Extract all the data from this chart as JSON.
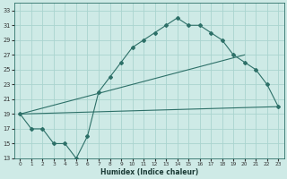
{
  "xlabel": "Humidex (Indice chaleur)",
  "bg_color": "#ceeae6",
  "grid_color": "#aad4cf",
  "line_color": "#2d7068",
  "xlim": [
    -0.5,
    23.5
  ],
  "ylim": [
    13,
    34
  ],
  "yticks": [
    13,
    15,
    17,
    19,
    21,
    23,
    25,
    27,
    29,
    31,
    33
  ],
  "xticks": [
    0,
    1,
    2,
    3,
    4,
    5,
    6,
    7,
    8,
    9,
    10,
    11,
    12,
    13,
    14,
    15,
    16,
    17,
    18,
    19,
    20,
    21,
    22,
    23
  ],
  "main_line_x": [
    0,
    1,
    2,
    3,
    4,
    5,
    6,
    7,
    8,
    9,
    10,
    11,
    12,
    13,
    14,
    15,
    16,
    17,
    18,
    19,
    20,
    21,
    22,
    23
  ],
  "main_line_y": [
    19,
    17,
    17,
    15,
    15,
    13,
    16,
    22,
    24,
    26,
    28,
    29,
    30,
    31,
    32,
    31,
    31,
    30,
    29,
    27,
    26,
    25,
    23,
    20
  ],
  "marker_x": [
    0,
    1,
    2,
    3,
    4,
    5,
    6,
    7,
    8,
    9,
    10,
    11,
    12,
    13,
    14,
    15,
    16,
    17,
    18,
    19,
    20,
    21,
    22,
    23
  ],
  "marker_y": [
    19,
    17,
    17,
    15,
    15,
    13,
    16,
    22,
    24,
    26,
    28,
    29,
    30,
    31,
    32,
    31,
    31,
    30,
    29,
    27,
    26,
    25,
    23,
    20
  ],
  "line2_x": [
    0,
    23
  ],
  "line2_y": [
    19,
    20
  ],
  "line3_x": [
    0,
    20
  ],
  "line3_y": [
    19,
    27
  ],
  "spine_color": "#2d7068"
}
